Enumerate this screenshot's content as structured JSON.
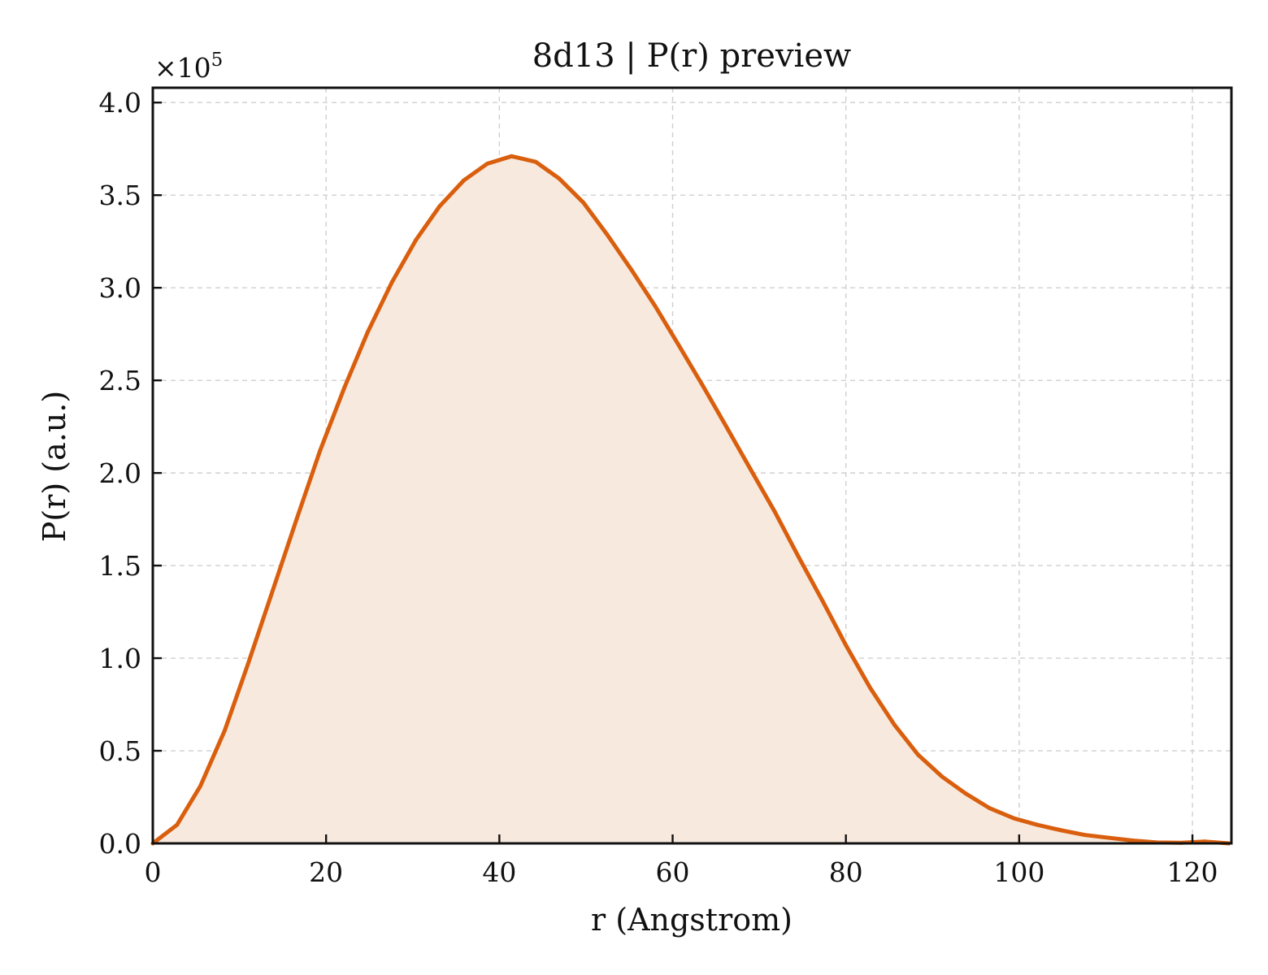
{
  "chart_data": {
    "type": "area",
    "title": "8d13 | P(r) preview",
    "xlabel": "r (Angstrom)",
    "ylabel": "P(r) (a.u.)",
    "y_multiplier": "×10",
    "y_multiplier_exponent": "5",
    "xlim": [
      0,
      124.5
    ],
    "ylim": [
      0,
      4.08
    ],
    "xticks": [
      0,
      20,
      40,
      60,
      80,
      100,
      120
    ],
    "xtick_labels": [
      "0",
      "20",
      "40",
      "60",
      "80",
      "100",
      "120"
    ],
    "yticks": [
      0,
      0.5,
      1.0,
      1.5,
      2.0,
      2.5,
      3.0,
      3.5,
      4.0
    ],
    "ytick_labels": [
      "0.0",
      "0.5",
      "1.0",
      "1.5",
      "2.0",
      "2.5",
      "3.0",
      "3.5",
      "4.0"
    ],
    "grid": true,
    "legend": "none",
    "colors": {
      "line": "#d95f0e",
      "fill": "#f8e9de"
    },
    "series": [
      {
        "x": [
          0,
          2.8,
          5.5,
          8.3,
          11.0,
          13.8,
          16.6,
          19.3,
          22.1,
          24.8,
          27.6,
          30.4,
          33.1,
          35.9,
          38.6,
          41.4,
          44.2,
          46.9,
          49.7,
          52.4,
          55.2,
          58.0,
          60.7,
          63.5,
          66.2,
          69.0,
          71.8,
          74.5,
          77.3,
          80.0,
          82.8,
          85.6,
          88.3,
          91.1,
          93.8,
          96.6,
          99.4,
          102.1,
          104.9,
          107.6,
          110.4,
          113.2,
          115.9,
          118.7,
          121.4,
          124.2
        ],
        "values": [
          0.0,
          0.1,
          0.31,
          0.61,
          0.97,
          1.36,
          1.75,
          2.12,
          2.46,
          2.76,
          3.03,
          3.26,
          3.44,
          3.58,
          3.67,
          3.71,
          3.68,
          3.59,
          3.46,
          3.29,
          3.1,
          2.9,
          2.69,
          2.47,
          2.25,
          2.02,
          1.79,
          1.55,
          1.31,
          1.07,
          0.84,
          0.64,
          0.48,
          0.36,
          0.27,
          0.19,
          0.135,
          0.1,
          0.07,
          0.045,
          0.03,
          0.015,
          0.005,
          0.003,
          0.01,
          0.0
        ]
      }
    ]
  }
}
